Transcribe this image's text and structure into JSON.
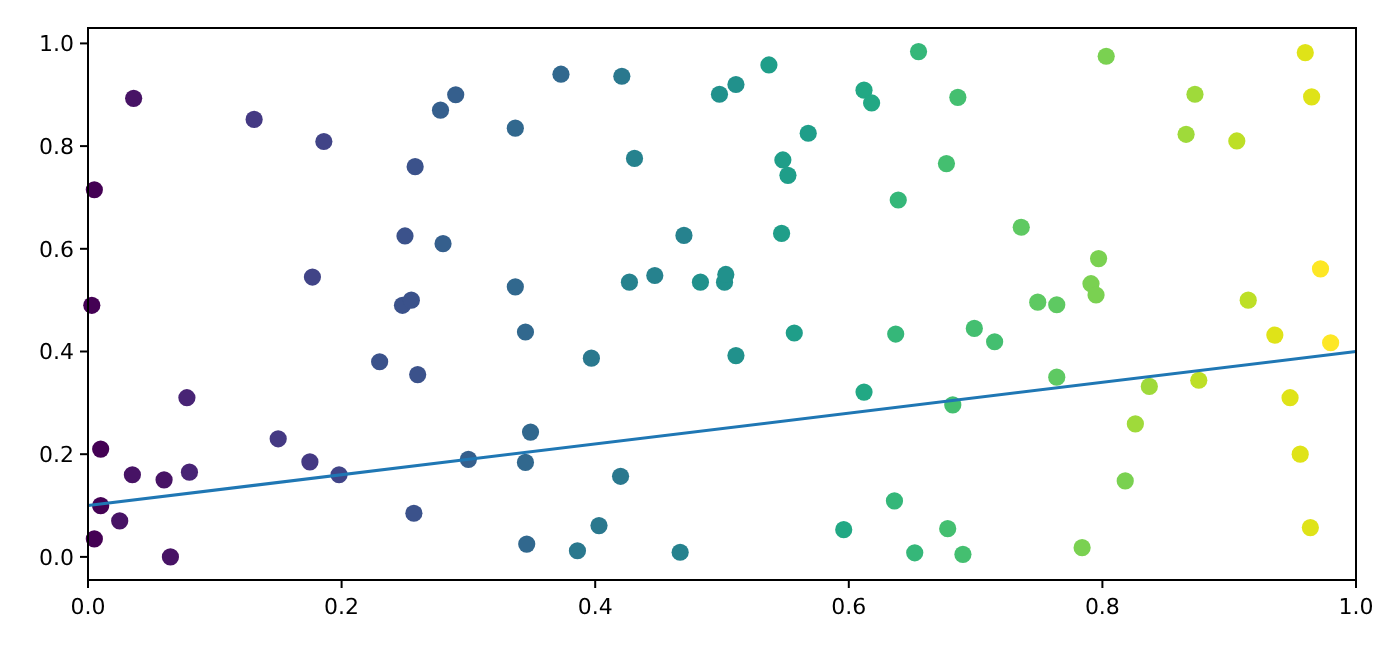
{
  "chart_data": {
    "type": "scatter",
    "grid": false,
    "xlim": [
      0,
      1
    ],
    "ylim": [
      -0.045,
      1.03
    ],
    "xticks": [
      {
        "value": 0,
        "label": "0.0"
      },
      {
        "value": 0.2,
        "label": "0.2"
      },
      {
        "value": 0.4,
        "label": "0.4"
      },
      {
        "value": 0.6,
        "label": "0.6"
      },
      {
        "value": 0.8,
        "label": "0.8"
      },
      {
        "value": 1,
        "label": "1.0"
      }
    ],
    "yticks": [
      {
        "value": 0,
        "label": "0.0"
      },
      {
        "value": 0.2,
        "label": "0.2"
      },
      {
        "value": 0.4,
        "label": "0.4"
      },
      {
        "value": 0.6,
        "label": "0.6"
      },
      {
        "value": 0.8,
        "label": "0.8"
      },
      {
        "value": 1,
        "label": "1.0"
      }
    ],
    "series": [
      {
        "marker": "circle",
        "x": [
          0.003,
          0.005,
          0.005,
          0.01,
          0.01,
          0.025,
          0.035,
          0.036,
          0.06,
          0.065,
          0.078,
          0.08,
          0.131,
          0.15,
          0.175,
          0.177,
          0.186,
          0.198,
          0.23,
          0.248,
          0.25,
          0.255,
          0.257,
          0.258,
          0.26,
          0.278,
          0.28,
          0.29,
          0.3,
          0.337,
          0.373,
          0.421,
          0.431,
          0.337,
          0.345,
          0.349,
          0.345,
          0.346,
          0.386,
          0.403,
          0.42,
          0.397,
          0.427,
          0.447,
          0.47,
          0.483,
          0.502,
          0.503,
          0.467,
          0.498,
          0.511,
          0.537,
          0.548,
          0.552,
          0.568,
          0.547,
          0.557,
          0.511,
          0.612,
          0.618,
          0.639,
          0.637,
          0.612,
          0.636,
          0.596,
          0.652,
          0.655,
          0.686,
          0.677,
          0.699,
          0.715,
          0.736,
          0.749,
          0.764,
          0.797,
          0.791,
          0.795,
          0.764,
          0.682,
          0.678,
          0.69,
          0.784,
          0.818,
          0.826,
          0.837,
          0.803,
          0.873,
          0.866,
          0.906,
          0.876,
          0.915,
          0.936,
          0.948,
          0.956,
          0.964,
          0.96,
          0.965,
          0.972,
          0.98
        ],
        "values": [
          0.49,
          0.715,
          0.035,
          0.21,
          0.1,
          0.07,
          0.16,
          0.893,
          0.15,
          0.0,
          0.31,
          0.165,
          0.852,
          0.23,
          0.185,
          0.545,
          0.809,
          0.16,
          0.38,
          0.49,
          0.625,
          0.5,
          0.085,
          0.76,
          0.355,
          0.87,
          0.61,
          0.9,
          0.19,
          0.835,
          0.94,
          0.936,
          0.776,
          0.526,
          0.438,
          0.243,
          0.184,
          0.025,
          0.012,
          0.061,
          0.157,
          0.387,
          0.535,
          0.548,
          0.626,
          0.535,
          0.535,
          0.55,
          0.009,
          0.901,
          0.92,
          0.958,
          0.773,
          0.743,
          0.825,
          0.63,
          0.436,
          0.392,
          0.909,
          0.884,
          0.695,
          0.434,
          0.321,
          0.109,
          0.053,
          0.008,
          0.984,
          0.895,
          0.766,
          0.445,
          0.419,
          0.642,
          0.496,
          0.491,
          0.581,
          0.532,
          0.51,
          0.35,
          0.296,
          0.055,
          0.005,
          0.018,
          0.148,
          0.259,
          0.332,
          0.975,
          0.901,
          0.823,
          0.81,
          0.344,
          0.5,
          0.432,
          0.31,
          0.2,
          0.057,
          0.982,
          0.896,
          0.561,
          0.417
        ],
        "colors": [
          "#440154",
          "#440154",
          "#440154",
          "#440154",
          "#440154",
          "#471365",
          "#471365",
          "#471365",
          "#471365",
          "#471365",
          "#482475",
          "#482475",
          "#443983",
          "#443983",
          "#443983",
          "#414487",
          "#414487",
          "#414487",
          "#3b528b",
          "#3b528b",
          "#3b528b",
          "#3b528b",
          "#3b528b",
          "#3b528b",
          "#3b528b",
          "#355f8d",
          "#355f8d",
          "#355f8d",
          "#355f8d",
          "#31688e",
          "#31688e",
          "#2a788e",
          "#26828e",
          "#31688e",
          "#31688e",
          "#31688e",
          "#31688e",
          "#31688e",
          "#2a788e",
          "#2a788e",
          "#2a788e",
          "#2a788e",
          "#26828e",
          "#26828e",
          "#26828e",
          "#21918c",
          "#21918c",
          "#21918c",
          "#26828e",
          "#21918c",
          "#21918c",
          "#1f9e89",
          "#1f9e89",
          "#1f9e89",
          "#1f9e89",
          "#1f9e89",
          "#1f9e89",
          "#21918c",
          "#22a884",
          "#22a884",
          "#35b779",
          "#35b779",
          "#22a884",
          "#35b779",
          "#22a884",
          "#35b779",
          "#35b779",
          "#44bf70",
          "#44bf70",
          "#44bf70",
          "#44bf70",
          "#5ec962",
          "#5ec962",
          "#5ec962",
          "#7ad151",
          "#7ad151",
          "#7ad151",
          "#5ec962",
          "#44bf70",
          "#44bf70",
          "#44bf70",
          "#7ad151",
          "#7ad151",
          "#9fda3a",
          "#9fda3a",
          "#7ad151",
          "#9fda3a",
          "#9fda3a",
          "#bddf26",
          "#bddf26",
          "#bddf26",
          "#dfe318",
          "#dfe318",
          "#dfe318",
          "#dfe318",
          "#dfe318",
          "#dfe318",
          "#fde725",
          "#fde725"
        ]
      },
      {
        "type": "line",
        "x": [
          0,
          1
        ],
        "values": [
          0.1,
          0.4
        ],
        "color": "#1f77b4"
      }
    ]
  }
}
